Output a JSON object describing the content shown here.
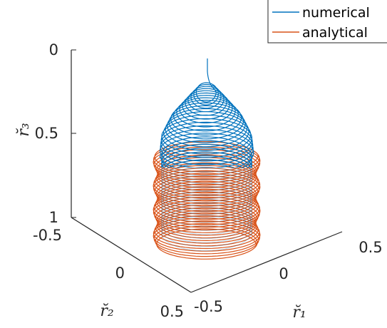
{
  "chart_data": {
    "type": "line3d",
    "title": "",
    "xlabel": "r̆₁",
    "ylabel": "r̆₂",
    "zlabel": "r̆₃",
    "xlim": [
      -0.5,
      0.5
    ],
    "ylim": [
      -0.5,
      0.5
    ],
    "zlim": [
      0,
      1
    ],
    "z_reversed": true,
    "x_ticks": [
      "-0.5",
      "0",
      "0.5"
    ],
    "y_ticks": [
      "-0.5",
      "0",
      "0.5"
    ],
    "z_ticks": [
      "0",
      "0.5",
      "1"
    ],
    "grid": false,
    "legend_position": "top-right",
    "series": [
      {
        "name": "numerical",
        "color": "#0072BD",
        "description": "spiral starting at r3=0 on the axis, forming a dome that widens to radius ~0.45 by r3~0.5, then coils down to r3~1",
        "path_samples": [
          {
            "z": 0.0,
            "radius": 0.0
          },
          {
            "z": 0.15,
            "radius": 0.0
          },
          {
            "z": 0.25,
            "radius": 0.18
          },
          {
            "z": 0.35,
            "radius": 0.34
          },
          {
            "z": 0.45,
            "radius": 0.43
          },
          {
            "z": 0.55,
            "radius": 0.45
          },
          {
            "z": 1.0,
            "radius": 0.45
          }
        ]
      },
      {
        "name": "analytical",
        "color": "#D95319",
        "description": "cylindrical helix of radius ~0.5 spanning r3 from ~0.5 to ~1",
        "path_samples": [
          {
            "z": 0.5,
            "radius": 0.5
          },
          {
            "z": 1.0,
            "radius": 0.5
          }
        ]
      }
    ]
  }
}
